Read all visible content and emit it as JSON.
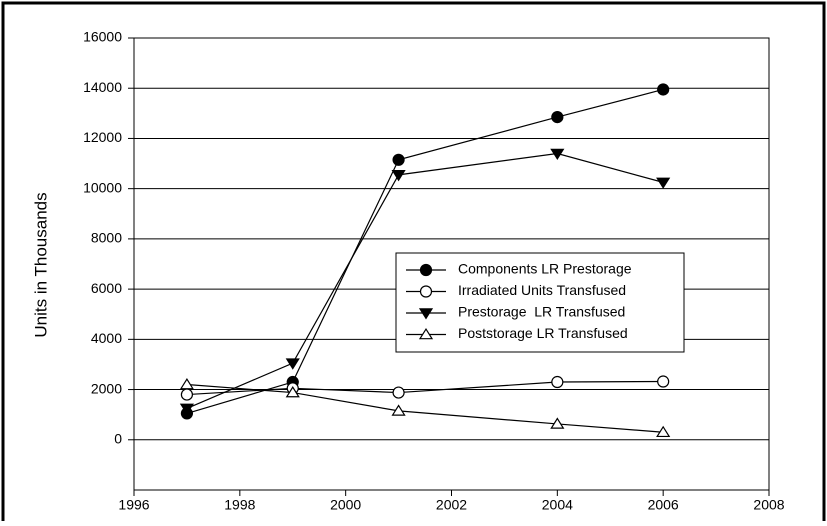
{
  "chart_data": {
    "type": "line",
    "y_label": "Units in Thousands",
    "x": [
      1997,
      1999,
      2001,
      2004,
      2006
    ],
    "series": [
      {
        "name": "Components LR Prestorage",
        "color": "#000000",
        "marker": "circle",
        "marker_fill": "#000000",
        "values": [
          1050,
          2300,
          11150,
          12850,
          13950
        ]
      },
      {
        "name": "Irradiated Units Transfused",
        "color": "#000000",
        "marker": "circle",
        "marker_fill": "#ffffff",
        "values": [
          1800,
          2050,
          1880,
          2300,
          2320
        ]
      },
      {
        "name": "Prestorage  LR Transfused",
        "color": "#000000",
        "marker": "triangle-down",
        "marker_fill": "#000000",
        "values": [
          1250,
          3050,
          10550,
          11400,
          10250
        ]
      },
      {
        "name": "Poststorage LR Transfused",
        "color": "#000000",
        "marker": "triangle-up",
        "marker_fill": "#ffffff",
        "values": [
          2200,
          1880,
          1150,
          630,
          300
        ]
      }
    ],
    "xlim": [
      1996,
      2008
    ],
    "xticks": [
      1996,
      1998,
      2000,
      2002,
      2004,
      2006,
      2008
    ],
    "ylim": [
      -2000,
      16000
    ],
    "yticks": [
      0,
      2000,
      4000,
      6000,
      8000,
      10000,
      12000,
      14000,
      16000
    ],
    "grid": true,
    "legend": "center-right"
  }
}
